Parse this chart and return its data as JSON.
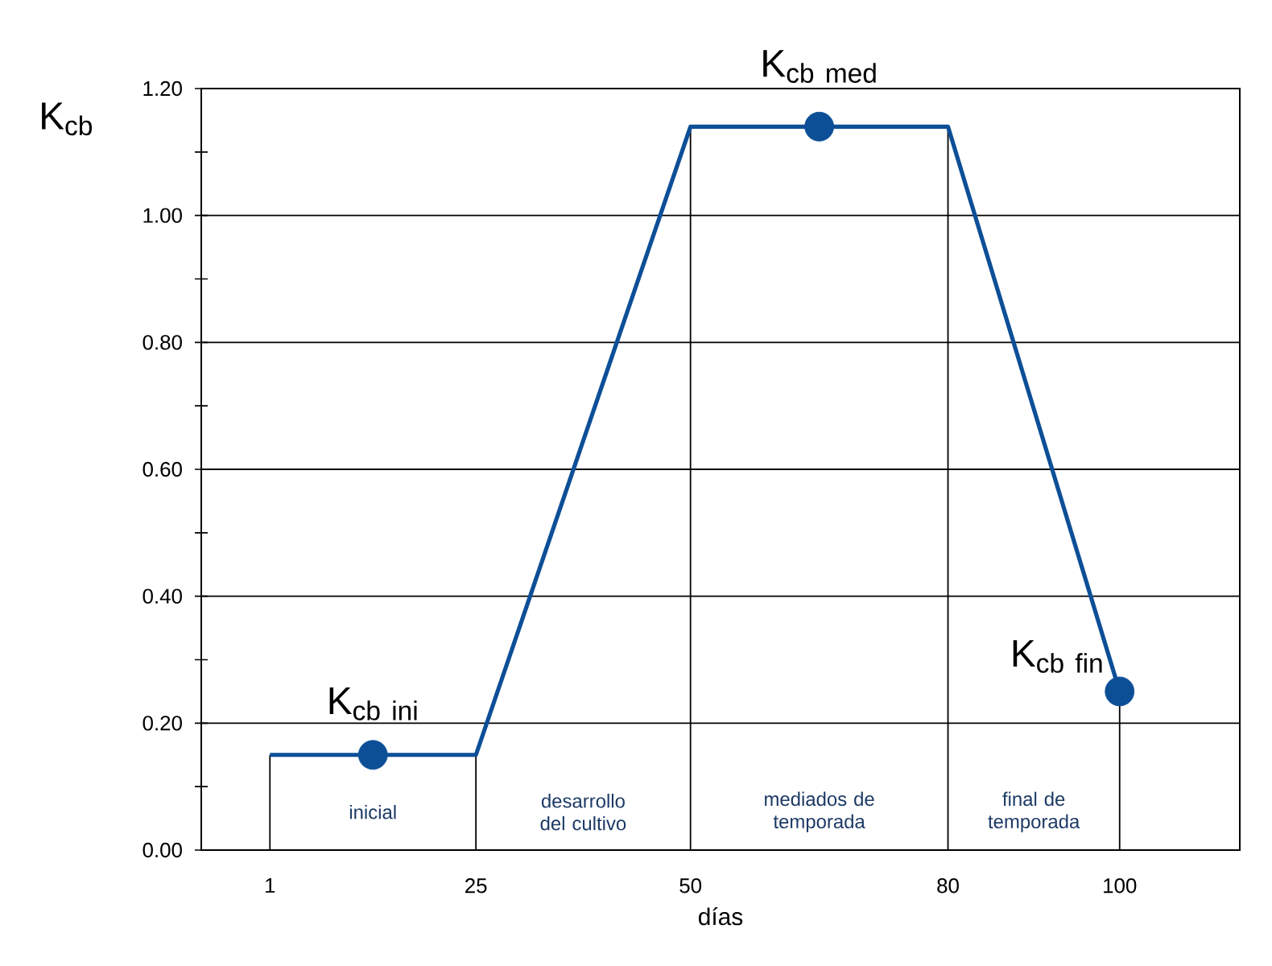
{
  "chart_data": {
    "type": "line",
    "xlabel": "días",
    "ylabel": "K$_{cb}$",
    "xlim": [
      -7,
      114
    ],
    "ylim": [
      0,
      1.2
    ],
    "xticks": [
      1,
      25,
      50,
      80,
      100
    ],
    "yticks": [
      {
        "value": 0,
        "label": "0.00"
      },
      {
        "value": 0.2,
        "label": "0.20"
      },
      {
        "value": 0.4,
        "label": "0.40"
      },
      {
        "value": 0.6,
        "label": "0.60"
      },
      {
        "value": 0.8,
        "label": "0.80"
      },
      {
        "value": 1.0,
        "label": "1.00"
      },
      {
        "value": 1.2,
        "label": "1.20"
      }
    ],
    "grid": "y",
    "series": [
      {
        "color": "#0d4f97",
        "marker": "none",
        "x": [
          1,
          25,
          50,
          80,
          100
        ],
        "values": [
          0.15,
          0.15,
          1.14,
          1.14,
          0.25
        ]
      },
      {
        "type": "scatter",
        "color": "#0d4f97",
        "marker": "circle",
        "x": [
          13,
          65,
          100
        ],
        "values": [
          0.15,
          1.14,
          0.25
        ]
      }
    ],
    "ref_lines": [
      {
        "axis": "x",
        "value": 1
      },
      {
        "axis": "x",
        "value": 25
      },
      {
        "axis": "x",
        "value": 50
      },
      {
        "axis": "x",
        "value": 80
      },
      {
        "axis": "x",
        "value": 100
      }
    ],
    "annotations": [
      {
        "text": "\\mathrm{K}_{\\mathrm{cb\\ ini}}",
        "x": 13,
        "y": 0.15
      },
      "\\mathrm{K}_{\\mathrm{cb\\ med}}",
      {
        "text": "\\mathrm{K}_{\\mathrm{cb\\ fin}}",
        "x": 100,
        "y": 0.25
      },
      "inicial",
      "desarrollo del cultivo",
      "mediados de temporada",
      "final de temporada"
    ]
  }
}
